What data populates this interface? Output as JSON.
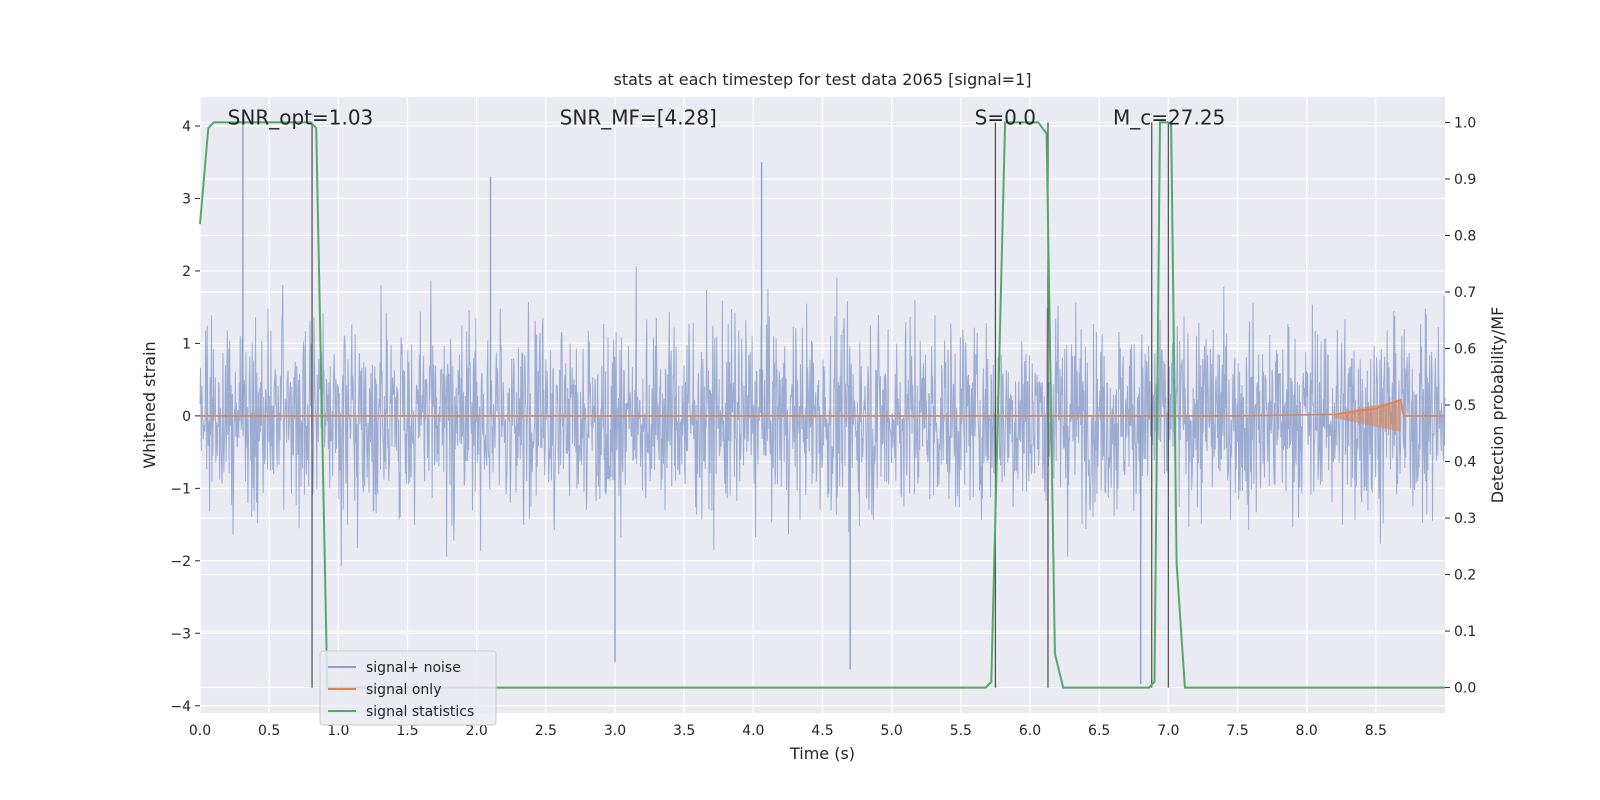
{
  "chart_data": {
    "type": "line",
    "title": "stats at each timestep for test data 2065 [signal=1]",
    "xlabel": "Time (s)",
    "ylabel": "Whitened strain",
    "ylabel_right": "Detection probability/MF",
    "xlim": [
      0.0,
      9.0
    ],
    "ylim": [
      -4.1,
      4.4
    ],
    "ylim_right": [
      -0.045,
      1.045
    ],
    "x_ticks": [
      "0.0",
      "0.5",
      "1.0",
      "1.5",
      "2.0",
      "2.5",
      "3.0",
      "3.5",
      "4.0",
      "4.5",
      "5.0",
      "5.5",
      "6.0",
      "6.5",
      "7.0",
      "7.5",
      "8.0",
      "8.5"
    ],
    "y_ticks_left": [
      "−4",
      "−3",
      "−2",
      "−1",
      "0",
      "1",
      "2",
      "3",
      "4"
    ],
    "y_ticks_right": [
      "0.0",
      "0.1",
      "0.2",
      "0.3",
      "0.4",
      "0.5",
      "0.6",
      "0.7",
      "0.8",
      "0.9",
      "1.0"
    ],
    "annotations": [
      {
        "text": "SNR_opt=1.03",
        "x": 0.2,
        "y": 4.1
      },
      {
        "text": "SNR_MF=[4.28]",
        "x": 2.6,
        "y": 4.1
      },
      {
        "text": "S=0.0",
        "x": 5.6,
        "y": 4.1
      },
      {
        "text": "M_c=27.25",
        "x": 6.6,
        "y": 4.1
      }
    ],
    "grid": true,
    "legend_position": "lower-left",
    "series": [
      {
        "name": "signal+ noise",
        "color": "#8da0cb",
        "style": "dense noisy strain around 0, amplitude ~1.5, peaks up to ~4",
        "amplitude_envelope": 1.5,
        "extremes": [
          {
            "x": 0.31,
            "y": 4.1
          },
          {
            "x": 2.1,
            "y": 3.3
          },
          {
            "x": 4.06,
            "y": 3.5
          },
          {
            "x": 3.0,
            "y": -3.4
          },
          {
            "x": 4.7,
            "y": -3.5
          },
          {
            "x": 6.8,
            "y": -3.7
          }
        ]
      },
      {
        "name": "signal only",
        "color": "#dd8452",
        "style": "flat at 0 with a small chirp near merger",
        "points": [
          [
            0.0,
            0.0
          ],
          [
            7.5,
            0.0
          ],
          [
            8.2,
            0.02
          ],
          [
            8.5,
            0.1
          ],
          [
            8.68,
            0.22
          ],
          [
            8.7,
            0.0
          ],
          [
            9.0,
            0.0
          ]
        ]
      },
      {
        "name": "signal statistics",
        "color": "#55a868",
        "axis": "right",
        "points": [
          [
            0.0,
            0.82
          ],
          [
            0.06,
            0.99
          ],
          [
            0.1,
            1.0
          ],
          [
            0.8,
            1.0
          ],
          [
            0.84,
            0.99
          ],
          [
            0.92,
            0.0
          ],
          [
            5.68,
            0.0
          ],
          [
            5.72,
            0.01
          ],
          [
            5.82,
            1.0
          ],
          [
            6.06,
            1.0
          ],
          [
            6.12,
            0.98
          ],
          [
            6.18,
            0.06
          ],
          [
            6.24,
            0.0
          ],
          [
            6.86,
            0.0
          ],
          [
            6.9,
            0.01
          ],
          [
            6.94,
            1.0
          ],
          [
            7.02,
            1.0
          ],
          [
            7.06,
            0.22
          ],
          [
            7.12,
            0.0
          ],
          [
            9.0,
            0.0
          ]
        ]
      }
    ],
    "vertical_markers": [
      0.81,
      5.75,
      6.13,
      6.88,
      7.0
    ]
  }
}
